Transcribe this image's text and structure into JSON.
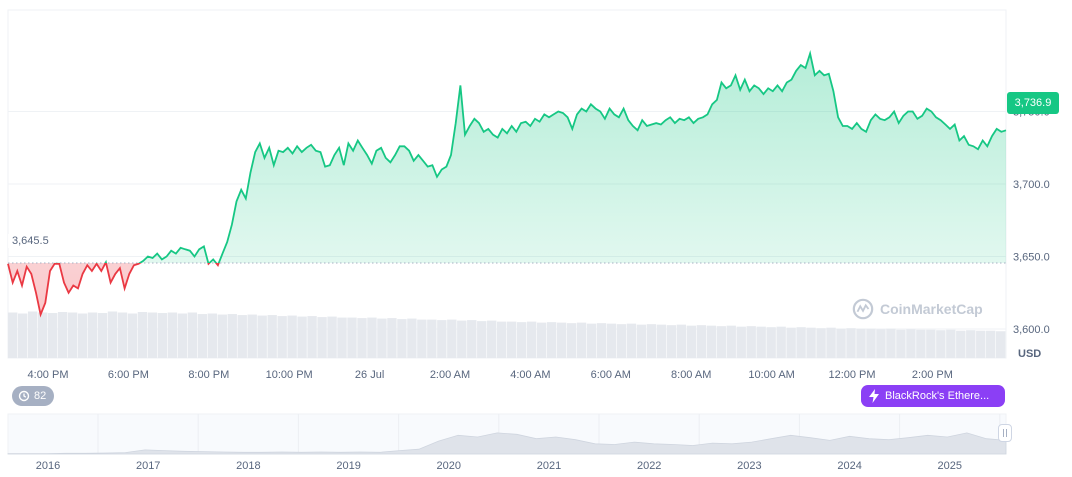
{
  "chart_data": {
    "type": "area",
    "currency_label": "USD",
    "open_price_label": "3,645.5",
    "open_price": 3645.5,
    "current_price_label": "3,736.9",
    "current_price": 3736.9,
    "ylim": [
      3580,
      3820
    ],
    "y_ticks": [
      {
        "value": 3750,
        "label": "3,750.0"
      },
      {
        "value": 3700,
        "label": "3,700.0"
      },
      {
        "value": 3650,
        "label": "3,650.0"
      },
      {
        "value": 3600,
        "label": "3,600.0"
      }
    ],
    "x_tick_labels": [
      "4:00 PM",
      "6:00 PM",
      "8:00 PM",
      "10:00 PM",
      "26 Jul",
      "2:00 AM",
      "4:00 AM",
      "6:00 AM",
      "8:00 AM",
      "10:00 AM",
      "12:00 PM",
      "2:00 PM"
    ],
    "series": [
      {
        "values": [
          3645,
          3632,
          3640,
          3630,
          3643,
          3638,
          3625,
          3610,
          3618,
          3640,
          3645,
          3645,
          3632,
          3625,
          3630,
          3628,
          3638,
          3644,
          3640,
          3645,
          3640,
          3646,
          3632,
          3638,
          3642,
          3628,
          3638,
          3644,
          3645,
          3647,
          3650,
          3649,
          3652,
          3648,
          3650,
          3654,
          3652,
          3656,
          3655,
          3654,
          3650,
          3655,
          3657,
          3645,
          3648,
          3644,
          3652,
          3660,
          3672,
          3688,
          3696,
          3690,
          3708,
          3722,
          3728,
          3718,
          3725,
          3713,
          3723,
          3722,
          3725,
          3721,
          3726,
          3722,
          3725,
          3727,
          3723,
          3722,
          3712,
          3713,
          3720,
          3725,
          3713,
          3728,
          3723,
          3730,
          3725,
          3720,
          3714,
          3723,
          3725,
          3718,
          3715,
          3720,
          3726,
          3726,
          3723,
          3716,
          3720,
          3716,
          3712,
          3713,
          3705,
          3710,
          3712,
          3720,
          3742,
          3768,
          3734,
          3740,
          3745,
          3742,
          3736,
          3738,
          3734,
          3732,
          3738,
          3735,
          3740,
          3736,
          3742,
          3743,
          3740,
          3745,
          3743,
          3748,
          3746,
          3748,
          3750,
          3749,
          3746,
          3738,
          3748,
          3752,
          3750,
          3755,
          3752,
          3750,
          3745,
          3752,
          3748,
          3746,
          3752,
          3744,
          3740,
          3737,
          3744,
          3740,
          3741,
          3742,
          3741,
          3744,
          3746,
          3742,
          3745,
          3744,
          3746,
          3742,
          3745,
          3746,
          3748,
          3755,
          3758,
          3770,
          3766,
          3768,
          3775,
          3765,
          3772,
          3764,
          3768,
          3766,
          3762,
          3766,
          3764,
          3768,
          3764,
          3770,
          3772,
          3778,
          3782,
          3780,
          3790,
          3775,
          3778,
          3775,
          3776,
          3764,
          3746,
          3740,
          3740,
          3738,
          3742,
          3738,
          3736,
          3744,
          3748,
          3745,
          3744,
          3746,
          3750,
          3742,
          3747,
          3750,
          3750,
          3745,
          3747,
          3752,
          3750,
          3746,
          3744,
          3741,
          3738,
          3741,
          3730,
          3733,
          3727,
          3726,
          3724,
          3730,
          3726,
          3733,
          3738,
          3736,
          3737
        ]
      }
    ],
    "volume_values": [
      0.9,
      0.88,
      0.92,
      0.9,
      0.89,
      0.91,
      0.9,
      0.88,
      0.9,
      0.89,
      0.92,
      0.9,
      0.88,
      0.91,
      0.9,
      0.89,
      0.9,
      0.88,
      0.9,
      0.87,
      0.88,
      0.86,
      0.87,
      0.85,
      0.86,
      0.84,
      0.85,
      0.83,
      0.84,
      0.82,
      0.83,
      0.81,
      0.82,
      0.8,
      0.8,
      0.79,
      0.8,
      0.78,
      0.79,
      0.77,
      0.78,
      0.76,
      0.76,
      0.75,
      0.76,
      0.74,
      0.75,
      0.73,
      0.74,
      0.72,
      0.72,
      0.71,
      0.72,
      0.7,
      0.71,
      0.7,
      0.69,
      0.7,
      0.68,
      0.69,
      0.68,
      0.67,
      0.68,
      0.66,
      0.67,
      0.66,
      0.65,
      0.66,
      0.64,
      0.65,
      0.64,
      0.63,
      0.64,
      0.62,
      0.63,
      0.62,
      0.61,
      0.62,
      0.6,
      0.61,
      0.6,
      0.59,
      0.6,
      0.58,
      0.59,
      0.58,
      0.58,
      0.57,
      0.58,
      0.56,
      0.57,
      0.56,
      0.56,
      0.55,
      0.56,
      0.54,
      0.55,
      0.54,
      0.54,
      0.53
    ],
    "range_chart": {
      "year_labels": [
        "2016",
        "2017",
        "2018",
        "2019",
        "2020",
        "2021",
        "2022",
        "2023",
        "2024",
        "2025"
      ],
      "values": [
        0.01,
        0.01,
        0.01,
        0.02,
        0.02,
        0.03,
        0.04,
        0.12,
        0.1,
        0.08,
        0.07,
        0.06,
        0.05,
        0.05,
        0.06,
        0.05,
        0.06,
        0.05,
        0.06,
        0.05,
        0.1,
        0.14,
        0.38,
        0.55,
        0.5,
        0.62,
        0.58,
        0.45,
        0.5,
        0.42,
        0.3,
        0.28,
        0.35,
        0.3,
        0.28,
        0.25,
        0.32,
        0.3,
        0.35,
        0.45,
        0.55,
        0.48,
        0.4,
        0.52,
        0.45,
        0.42,
        0.48,
        0.55,
        0.5,
        0.62,
        0.45,
        0.4
      ]
    }
  },
  "watermark": "CoinMarketCap",
  "events_badge": {
    "count": "82",
    "icon": "history-icon"
  },
  "news_badge": {
    "label": "BlackRock's Ethere...",
    "icon": "lightning-icon"
  },
  "colors": {
    "up": "#16c784",
    "down": "#ea3943",
    "news": "#8b3ff5"
  }
}
